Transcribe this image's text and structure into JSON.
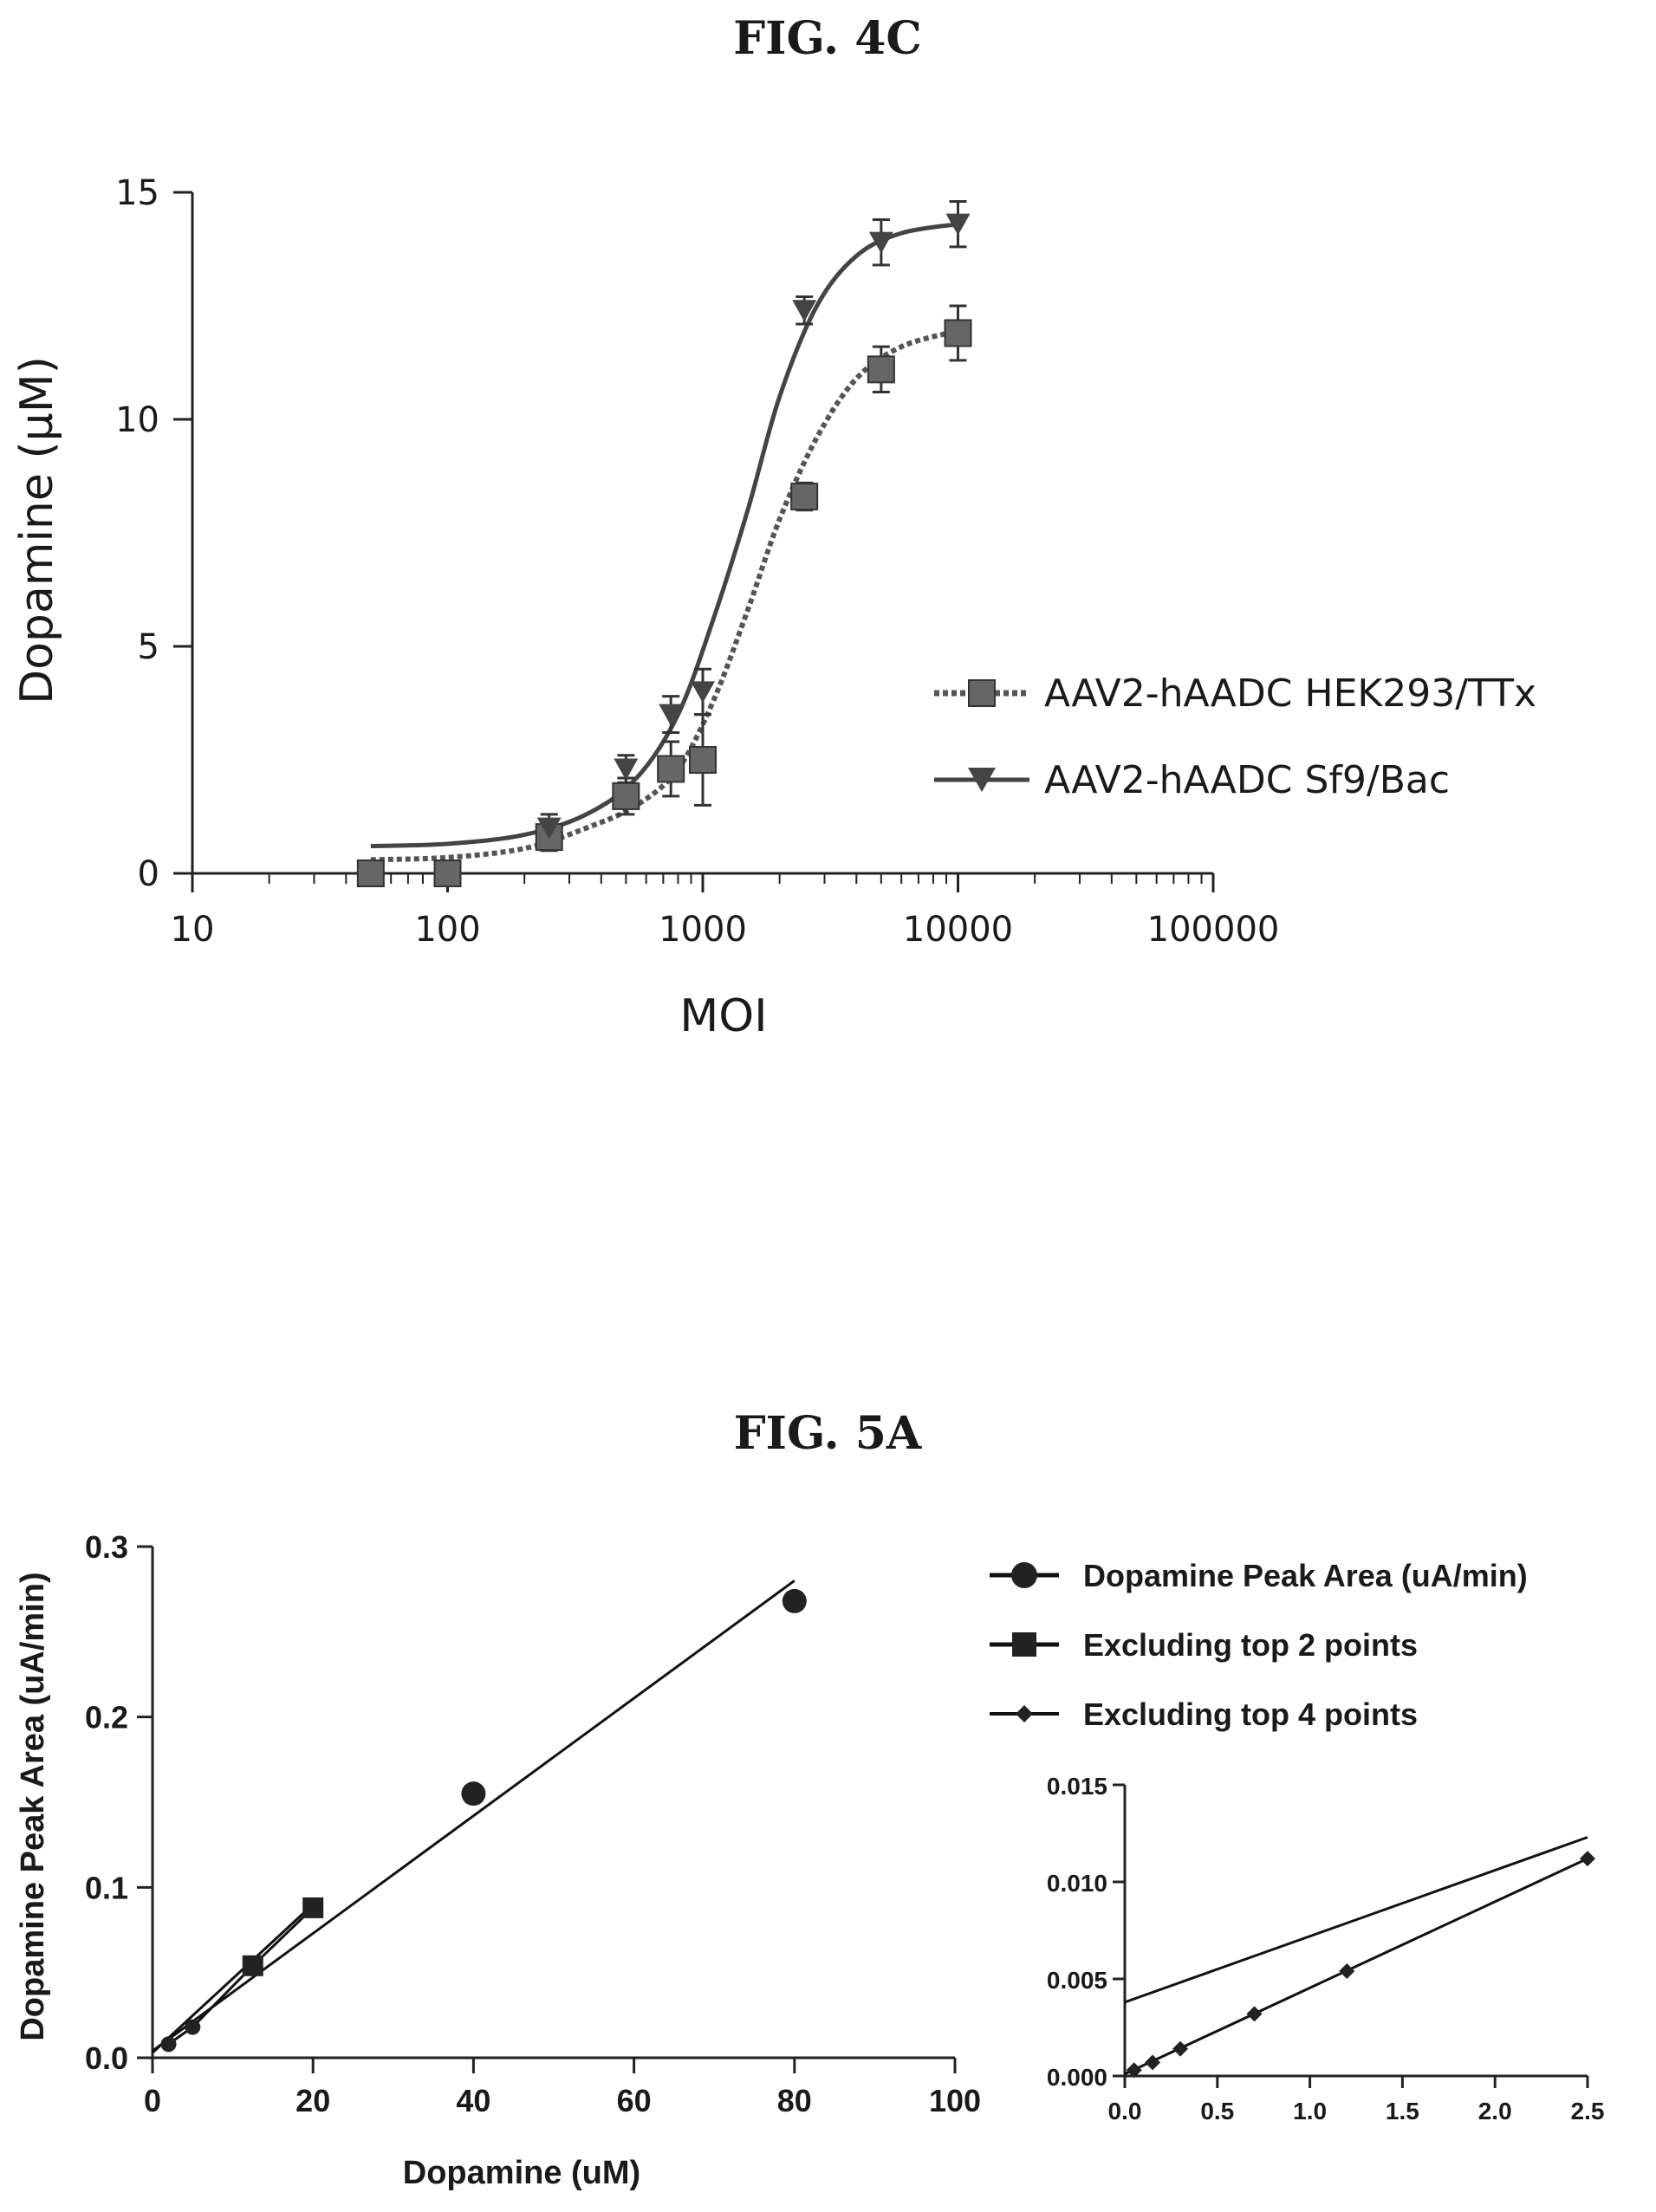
{
  "figures": {
    "fig4c_title": "FIG. 4C",
    "fig5a_title": "FIG. 5A"
  },
  "chart_data": [
    {
      "type": "line",
      "scale_x": "log",
      "xlabel": "MOI",
      "ylabel": "Dopamine (μM)",
      "xlim": [
        10,
        100000
      ],
      "ylim": [
        0,
        15
      ],
      "x_ticks": [
        "10",
        "100",
        "1000",
        "10000",
        "100000"
      ],
      "y_ticks": [
        "0",
        "5",
        "10",
        "15"
      ],
      "legend_position": "right",
      "series": [
        {
          "name": "AAV2-hAADC HEK293/TTx",
          "marker": "square",
          "x": [
            50,
            100,
            250,
            500,
            750,
            1000,
            2500,
            5000,
            10000
          ],
          "y": [
            0.0,
            0.0,
            0.8,
            1.7,
            2.3,
            2.5,
            8.3,
            11.1,
            11.9
          ],
          "error": [
            0.1,
            0.1,
            0.3,
            0.4,
            0.6,
            1.0,
            0.3,
            0.5,
            0.6
          ],
          "fit_y": [
            0.3,
            0.35,
            0.55,
            1.0,
            1.5,
            2.3,
            3.8,
            5.8,
            7.8,
            9.6,
            10.9,
            11.6,
            11.95
          ]
        },
        {
          "name": "AAV2-hAADC Sf9/Bac",
          "marker": "triangle-down",
          "x": [
            250,
            500,
            750,
            1000,
            2500,
            5000,
            10000
          ],
          "y": [
            1.0,
            2.3,
            3.5,
            4.0,
            12.4,
            13.9,
            14.3
          ],
          "error": [
            0.3,
            0.3,
            0.4,
            0.5,
            0.3,
            0.5,
            0.5
          ],
          "fit_y": [
            0.6,
            0.65,
            0.85,
            1.3,
            2.1,
            3.5,
            5.6,
            8.0,
            10.5,
            12.5,
            13.6,
            14.1,
            14.3
          ]
        }
      ],
      "fit_x": [
        50,
        100,
        200,
        350,
        550,
        800,
        1100,
        1500,
        2000,
        2800,
        4000,
        6000,
        10000
      ]
    },
    {
      "type": "line",
      "xlabel": "Dopamine (uM)",
      "ylabel": "Dopamine Peak Area (uA/min)",
      "xlim": [
        0,
        100
      ],
      "ylim": [
        0,
        0.3
      ],
      "x_ticks": [
        "0",
        "20",
        "40",
        "60",
        "80",
        "100"
      ],
      "y_ticks": [
        "0.0",
        "0.1",
        "0.2",
        "0.3"
      ],
      "legend_position": "top-right",
      "series": [
        {
          "name": "Dopamine Peak Area (uA/min)",
          "marker": "circle",
          "x": [
            40,
            80
          ],
          "y": [
            0.155,
            0.268
          ],
          "fit": [
            [
              0,
              0.004
            ],
            [
              80,
              0.28
            ]
          ]
        },
        {
          "name": "Excluding top 2 points",
          "marker": "square",
          "x": [
            2,
            5,
            12.5,
            20
          ],
          "y": [
            0.008,
            0.018,
            0.054,
            0.088
          ],
          "fit": [
            [
              0,
              0.003
            ],
            [
              20,
              0.09
            ]
          ]
        },
        {
          "name": "Excluding top 4 points",
          "marker": "diamond",
          "x": [
            0.05,
            0.15,
            0.3,
            0.7,
            1.2,
            2.5
          ],
          "y": [
            0.0003,
            0.0007,
            0.0014,
            0.0032,
            0.0054,
            0.0112
          ],
          "fit": [
            [
              0,
              0.0001
            ],
            [
              2.5,
              0.0112
            ]
          ]
        }
      ],
      "inset": {
        "xlim": [
          0,
          2.5
        ],
        "ylim": [
          0,
          0.015
        ],
        "x_ticks": [
          "0.0",
          "0.5",
          "1.0",
          "1.5",
          "2.0",
          "2.5"
        ],
        "y_ticks": [
          "0.000",
          "0.005",
          "0.010",
          "0.015"
        ],
        "extra_line": [
          [
            0,
            0.0038
          ],
          [
            2.5,
            0.0123
          ]
        ]
      }
    }
  ]
}
